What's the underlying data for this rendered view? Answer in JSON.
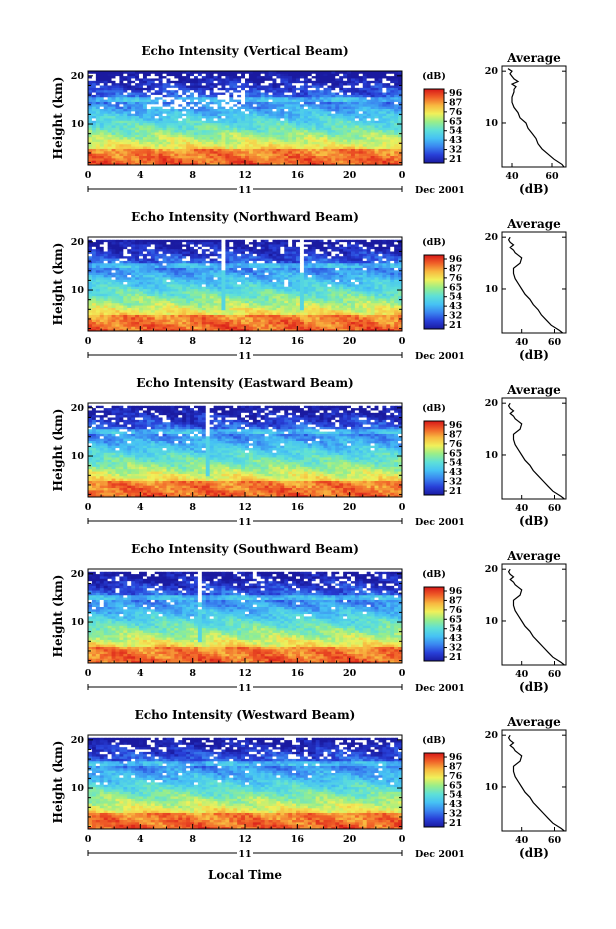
{
  "figure": {
    "xlabel": "Local Time",
    "ylabel": "Height (km)",
    "date_label": "Dec 2001",
    "day_label": "11",
    "avg_title": "Average",
    "unit_label": "(dB)",
    "colorbar_ticks": [
      "96",
      "87",
      "76",
      "65",
      "54",
      "43",
      "32",
      "21"
    ],
    "colors": {
      "scale": [
        "#1a1aa0",
        "#2840d8",
        "#3a86f0",
        "#46c2f4",
        "#5ee0d8",
        "#98ee8a",
        "#f0f05a",
        "#f8b840",
        "#f06028",
        "#d81818"
      ]
    }
  },
  "chart_data": [
    {
      "type": "heatmap",
      "title": "Echo Intensity (Vertical Beam)",
      "xlabel": "",
      "ylabel": "Height (km)",
      "x_ticks": [
        "0",
        "4",
        "8",
        "12",
        "16",
        "20",
        "0"
      ],
      "y_ticks": [
        "10",
        "20"
      ],
      "xlim": [
        0,
        24
      ],
      "ylim": [
        1.5,
        21
      ],
      "colorbar_range_db": [
        21,
        96
      ],
      "profile": {
        "title": "Average",
        "xlabel": "(dB)",
        "x_ticks": [
          "40",
          "60"
        ],
        "y_ticks": [
          "10",
          "20"
        ],
        "xlim": [
          35,
          67
        ],
        "height_km": [
          1.5,
          2,
          3,
          4,
          5,
          6,
          7,
          8,
          9,
          10,
          11,
          12,
          13,
          14,
          15,
          16,
          16.5,
          17,
          17.5,
          18,
          18.5,
          19,
          19.5,
          20,
          20.5
        ],
        "avg_db": [
          66,
          65,
          61,
          58,
          55,
          53,
          52,
          50,
          48,
          47,
          44,
          43,
          41,
          40,
          40,
          41,
          41,
          42,
          40,
          43,
          41,
          40,
          39,
          40,
          38
        ]
      }
    },
    {
      "type": "heatmap",
      "title": "Echo Intensity (Northward Beam)",
      "xlabel": "",
      "ylabel": "Height (km)",
      "x_ticks": [
        "0",
        "4",
        "8",
        "12",
        "16",
        "20",
        "0"
      ],
      "y_ticks": [
        "10",
        "20"
      ],
      "xlim": [
        0,
        24
      ],
      "ylim": [
        1.5,
        21
      ],
      "colorbar_range_db": [
        21,
        96
      ],
      "profile": {
        "title": "Average",
        "xlabel": "(dB)",
        "x_ticks": [
          "40",
          "60"
        ],
        "y_ticks": [
          "10",
          "20"
        ],
        "xlim": [
          28,
          67
        ],
        "height_km": [
          1.5,
          2,
          3,
          4,
          5,
          6,
          7,
          8,
          9,
          10,
          11,
          12,
          13,
          14,
          15,
          16,
          16.5,
          17,
          17.5,
          18,
          18.5,
          19,
          19.5,
          20
        ],
        "avg_db": [
          65,
          63,
          58,
          55,
          52,
          50,
          47,
          45,
          42,
          40,
          38,
          36,
          35,
          35,
          39,
          40,
          38,
          36,
          35,
          33,
          35,
          33,
          32,
          33
        ]
      }
    },
    {
      "type": "heatmap",
      "title": "Echo Intensity (Eastward Beam)",
      "xlabel": "",
      "ylabel": "Height (km)",
      "x_ticks": [
        "0",
        "4",
        "8",
        "12",
        "16",
        "20",
        "0"
      ],
      "y_ticks": [
        "10",
        "20"
      ],
      "xlim": [
        0,
        24
      ],
      "ylim": [
        1.5,
        21
      ],
      "colorbar_range_db": [
        21,
        96
      ],
      "profile": {
        "title": "Average",
        "xlabel": "(dB)",
        "x_ticks": [
          "40",
          "60"
        ],
        "y_ticks": [
          "10",
          "20"
        ],
        "xlim": [
          28,
          67
        ],
        "height_km": [
          1.5,
          2,
          3,
          4,
          5,
          6,
          7,
          8,
          9,
          10,
          11,
          12,
          13,
          14,
          15,
          16,
          16.5,
          17,
          17.5,
          18,
          18.5,
          19,
          19.5,
          20
        ],
        "avg_db": [
          66,
          64,
          59,
          56,
          53,
          50,
          47,
          45,
          42,
          40,
          38,
          36,
          35,
          35,
          39,
          40,
          38,
          36,
          35,
          33,
          35,
          33,
          32,
          33
        ]
      }
    },
    {
      "type": "heatmap",
      "title": "Echo Intensity (Southward Beam)",
      "xlabel": "",
      "ylabel": "Height (km)",
      "x_ticks": [
        "0",
        "4",
        "8",
        "12",
        "16",
        "20",
        "0"
      ],
      "y_ticks": [
        "10",
        "20"
      ],
      "xlim": [
        0,
        24
      ],
      "ylim": [
        1.5,
        21
      ],
      "colorbar_range_db": [
        21,
        96
      ],
      "profile": {
        "title": "Average",
        "xlabel": "(dB)",
        "x_ticks": [
          "40",
          "60"
        ],
        "y_ticks": [
          "10",
          "20"
        ],
        "xlim": [
          28,
          67
        ],
        "height_km": [
          1.5,
          2,
          3,
          4,
          5,
          6,
          7,
          8,
          9,
          10,
          11,
          12,
          13,
          14,
          15,
          16,
          16.5,
          17,
          17.5,
          18,
          18.5,
          19,
          19.5,
          20
        ],
        "avg_db": [
          66,
          64,
          59,
          56,
          53,
          50,
          47,
          45,
          42,
          40,
          38,
          36,
          35,
          35,
          39,
          40,
          38,
          36,
          35,
          33,
          35,
          33,
          32,
          33
        ]
      }
    },
    {
      "type": "heatmap",
      "title": "Echo Intensity (Westward Beam)",
      "xlabel": "Local Time",
      "ylabel": "Height (km)",
      "x_ticks": [
        "0",
        "4",
        "8",
        "12",
        "16",
        "20",
        "0"
      ],
      "y_ticks": [
        "10",
        "20"
      ],
      "xlim": [
        0,
        24
      ],
      "ylim": [
        1.5,
        21
      ],
      "colorbar_range_db": [
        21,
        96
      ],
      "profile": {
        "title": "Average",
        "xlabel": "(dB)",
        "x_ticks": [
          "40",
          "60"
        ],
        "y_ticks": [
          "10",
          "20"
        ],
        "xlim": [
          28,
          67
        ],
        "height_km": [
          1.5,
          2,
          3,
          4,
          5,
          6,
          7,
          8,
          9,
          10,
          11,
          12,
          13,
          14,
          15,
          16,
          16.5,
          17,
          17.5,
          18,
          18.5,
          19,
          19.5,
          20
        ],
        "avg_db": [
          66,
          64,
          59,
          56,
          53,
          50,
          47,
          45,
          42,
          40,
          38,
          36,
          35,
          35,
          39,
          40,
          38,
          36,
          35,
          33,
          35,
          33,
          32,
          33
        ]
      }
    }
  ]
}
